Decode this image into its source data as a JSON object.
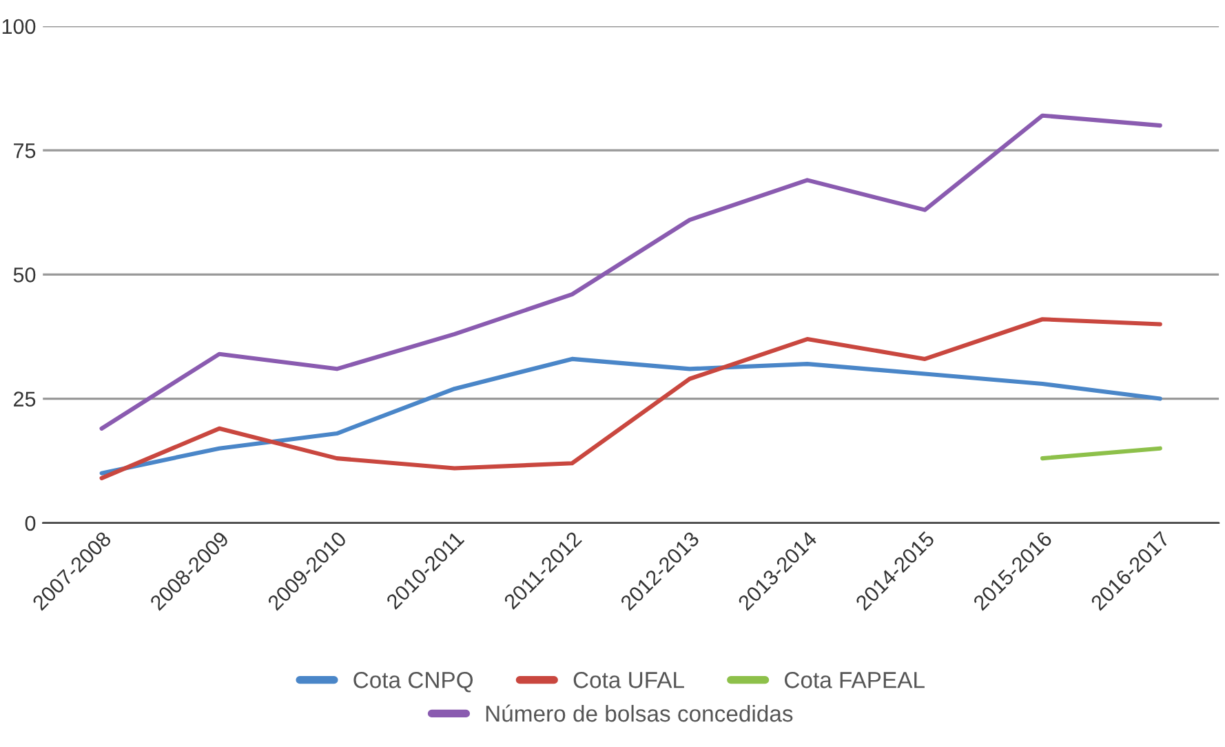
{
  "chart_data": {
    "type": "line",
    "categories": [
      "2007-2008",
      "2008-2009",
      "2009-2010",
      "2010-2011",
      "2011-2012",
      "2012-2013",
      "2013-2014",
      "2014-2015",
      "2015-2016",
      "2016-2017"
    ],
    "series": [
      {
        "name": "Cota CNPQ",
        "color": "#4a86c8",
        "values": [
          10,
          15,
          18,
          27,
          33,
          31,
          32,
          30,
          28,
          25
        ]
      },
      {
        "name": "Cota UFAL",
        "color": "#c9473f",
        "values": [
          9,
          19,
          13,
          11,
          12,
          29,
          37,
          33,
          41,
          40
        ]
      },
      {
        "name": "Cota FAPEAL",
        "color": "#8dc04a",
        "values": [
          null,
          null,
          null,
          null,
          null,
          null,
          null,
          null,
          13,
          15
        ]
      },
      {
        "name": "Número de bolsas concedidas",
        "color": "#8a5bb0",
        "values": [
          19,
          34,
          31,
          38,
          46,
          61,
          69,
          63,
          82,
          80
        ]
      }
    ],
    "ylim": [
      0,
      100
    ],
    "yticks": [
      0,
      25,
      50,
      75,
      100
    ],
    "grid": "y",
    "legend": "bottom",
    "marker": "none",
    "line_style": "solid"
  }
}
